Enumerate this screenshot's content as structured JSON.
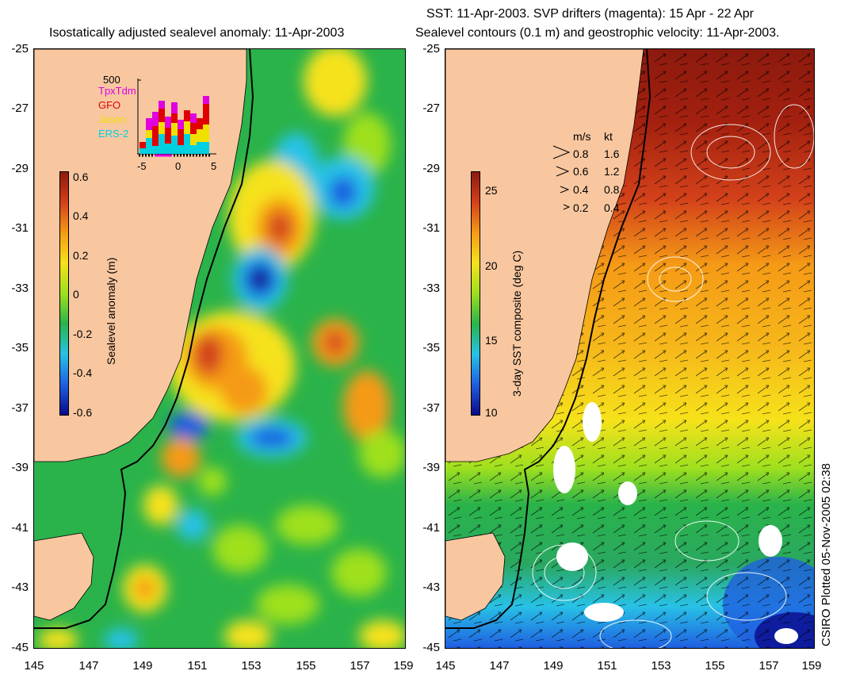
{
  "left_panel": {
    "title": "Isostatically adjusted sealevel anomaly: 11-Apr-2003",
    "colorbar": {
      "label": "Sealevel anomaly (m)",
      "ticks": [
        "0.6",
        "0.4",
        "0.2",
        "0",
        "-0.2",
        "-0.4",
        "-0.6"
      ],
      "colors": [
        "#0a0a8c",
        "#1f5fe0",
        "#28c2e6",
        "#2ab34a",
        "#9ee01e",
        "#f6e21a",
        "#f59a16",
        "#d3411a",
        "#8c1a0e"
      ]
    },
    "inset": {
      "y_tick": "500",
      "legend": [
        {
          "name": "TpxTdm",
          "color": "#e000e0"
        },
        {
          "name": "GFO",
          "color": "#e00000"
        },
        {
          "name": "Jason",
          "color": "#f0e000"
        },
        {
          "name": "ERS-2",
          "color": "#00d0e0"
        }
      ],
      "x_ticks": [
        "-5",
        "0",
        "5"
      ]
    }
  },
  "right_panel": {
    "title_line1": "SST: 11-Apr-2003. SVP drifters (magenta): 15 Apr - 22 Apr",
    "title_line2": "Sealevel contours (0.1 m) and geostrophic velocity: 11-Apr-2003.",
    "colorbar": {
      "label": "3-day SST composite (deg C)",
      "ticks": [
        "25",
        "20",
        "15",
        "10"
      ],
      "colors": [
        "#0a0a8c",
        "#1f5fe0",
        "#28c2e6",
        "#2ab34a",
        "#9ee01e",
        "#f6e21a",
        "#f59a16",
        "#d3411a",
        "#8c1a0e"
      ]
    },
    "velocity_legend": {
      "header_ms": "m/s",
      "header_kt": "kt",
      "rows": [
        {
          "ms": "0.8",
          "kt": "1.6"
        },
        {
          "ms": "0.6",
          "kt": "1.2"
        },
        {
          "ms": "0.4",
          "kt": "0.8"
        },
        {
          "ms": "0.2",
          "kt": "0.4"
        }
      ]
    }
  },
  "axes": {
    "lat_ticks": [
      "-25",
      "-27",
      "-29",
      "-31",
      "-33",
      "-35",
      "-37",
      "-39",
      "-41",
      "-43",
      "-45"
    ],
    "lon_ticks": [
      "145",
      "147",
      "149",
      "151",
      "153",
      "155",
      "157",
      "159"
    ]
  },
  "credit": "CSIRO Plotted 05-Nov-2005 02:38",
  "colors": {
    "land": "#f8c7a0",
    "coastline": "#000000"
  }
}
